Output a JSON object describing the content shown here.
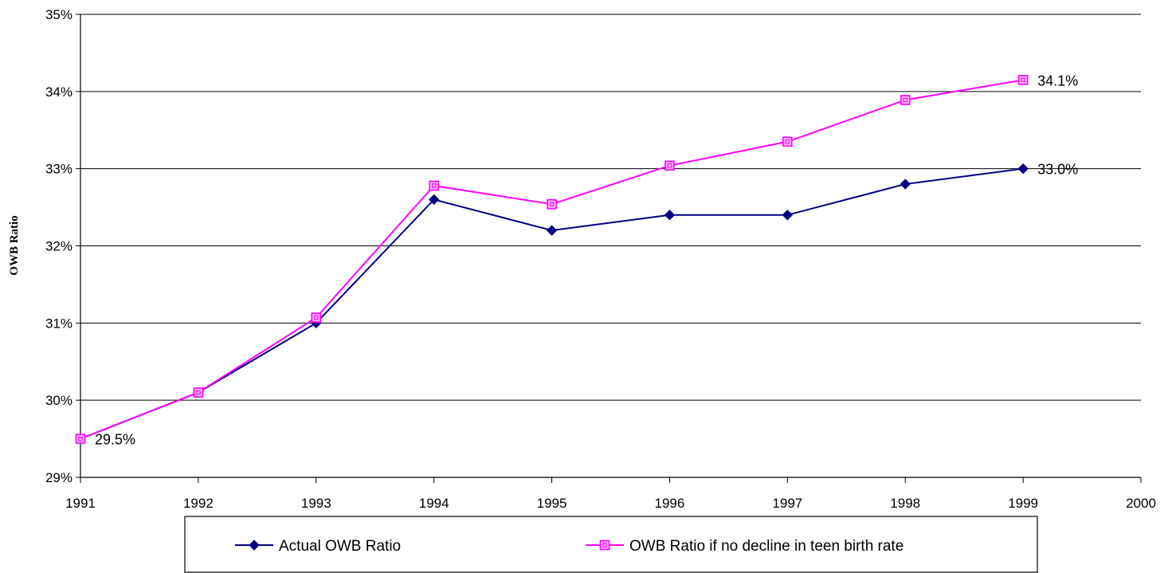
{
  "chart_data": {
    "type": "line",
    "title": "",
    "xlabel": "",
    "ylabel": "OWB Ratio",
    "x": [
      1991,
      1992,
      1993,
      1994,
      1995,
      1996,
      1997,
      1998,
      1999
    ],
    "xlim": [
      1991,
      2000
    ],
    "x_ticks": [
      "1991",
      "1992",
      "1993",
      "1994",
      "1995",
      "1996",
      "1997",
      "1998",
      "1999",
      "2000"
    ],
    "ylim": [
      29,
      35
    ],
    "y_ticks": [
      "29%",
      "30%",
      "31%",
      "32%",
      "33%",
      "34%",
      "35%"
    ],
    "grid": "horizontal",
    "legend_position": "bottom",
    "series": [
      {
        "name": "Actual OWB Ratio",
        "color": "#000080",
        "marker": "diamond",
        "values": [
          29.5,
          30.1,
          31.0,
          32.6,
          32.2,
          32.4,
          32.4,
          32.8,
          33.0
        ]
      },
      {
        "name": "OWB Ratio if no decline in teen birth rate",
        "color": "#ff00ff",
        "marker": "square",
        "values": [
          29.5,
          30.1,
          31.07,
          32.78,
          32.54,
          33.04,
          33.35,
          33.89,
          34.15
        ]
      }
    ],
    "annotations": [
      {
        "series": 1,
        "index": 0,
        "text": "29.5%"
      },
      {
        "series": 0,
        "index": 8,
        "text": "33.0%"
      },
      {
        "series": 1,
        "index": 8,
        "text": "34.1%"
      }
    ]
  }
}
